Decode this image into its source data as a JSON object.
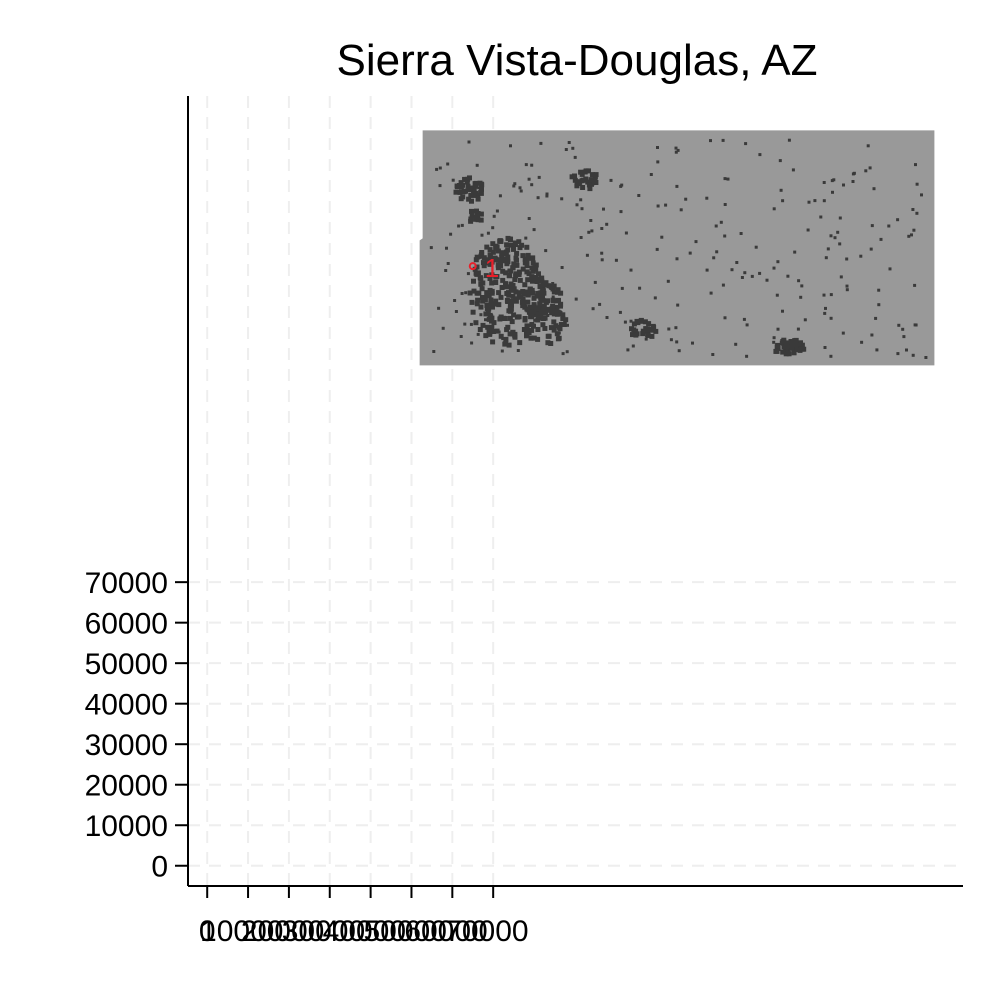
{
  "chart_data": {
    "type": "scatter",
    "title": "Sierra Vista-Douglas, AZ",
    "xlabel": "",
    "ylabel": "",
    "xlim": [
      -4700,
      185000
    ],
    "ylim": [
      -5000,
      190000
    ],
    "x_ticks": [
      0,
      10000,
      20000,
      30000,
      40000,
      50000,
      60000,
      70000
    ],
    "x_tick_labels": [
      "0",
      "10000",
      "20000",
      "30000",
      "40000",
      "50000",
      "60000",
      "70000"
    ],
    "y_ticks": [
      0,
      10000,
      20000,
      30000,
      40000,
      50000,
      60000,
      70000
    ],
    "y_tick_labels": [
      "0",
      "10000",
      "20000",
      "30000",
      "40000",
      "50000",
      "60000",
      "70000"
    ],
    "grid": true,
    "background_region": {
      "description": "county raster",
      "x_range": [
        52000,
        178000
      ],
      "y_range": [
        123500,
        181500
      ],
      "color": "#999999"
    },
    "series": [
      {
        "color": "#e8202a",
        "points": [
          {
            "x": 65000,
            "y": 148000,
            "label": "1"
          }
        ]
      }
    ],
    "colors": {
      "raster": "#999999",
      "features": "#3a3a3a",
      "highlight": "#e8202a",
      "grid": "#eeeeee"
    }
  }
}
